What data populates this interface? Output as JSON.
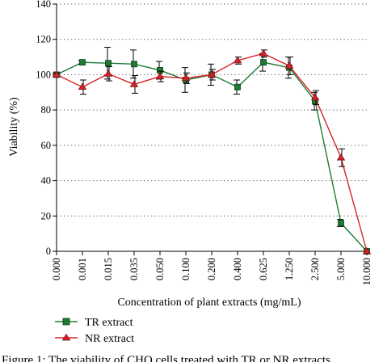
{
  "chart_data": {
    "type": "line",
    "title": "",
    "xlabel": "Concentration of plant extracts (mg/mL)",
    "ylabel": "Viability (%)",
    "ylim": [
      0,
      140
    ],
    "yticks": [
      "0",
      "20",
      "40",
      "60",
      "80",
      "100",
      "120",
      "140"
    ],
    "categories": [
      "0.000",
      "0.001",
      "0.015",
      "0.035",
      "0.050",
      "0.100",
      "0.200",
      "0.400",
      "0.625",
      "1.250",
      "2.500",
      "5.000",
      "10.000"
    ],
    "grid": "horizontal dotted",
    "legend_position": "bottom-left",
    "series": [
      {
        "name": "TR extract",
        "color": "#1e7b34",
        "marker": "square",
        "values": [
          100,
          107,
          106.5,
          106,
          102.5,
          97,
          100,
          93,
          107,
          104,
          85,
          16,
          0
        ],
        "errors": [
          1,
          1,
          9,
          8,
          5,
          7,
          6,
          4,
          5,
          6,
          5,
          2,
          0
        ]
      },
      {
        "name": "NR extract",
        "color": "#d8232a",
        "marker": "triangle",
        "values": [
          100,
          93,
          100.5,
          94.5,
          99,
          98,
          100,
          108,
          112,
          105,
          87,
          53,
          0
        ],
        "errors": [
          1,
          4,
          4,
          5,
          3,
          3,
          3,
          2,
          2,
          5,
          4,
          5,
          0
        ]
      }
    ]
  },
  "caption": "Figure 1: The viability of CHO cells treated with TR or NR extracts"
}
